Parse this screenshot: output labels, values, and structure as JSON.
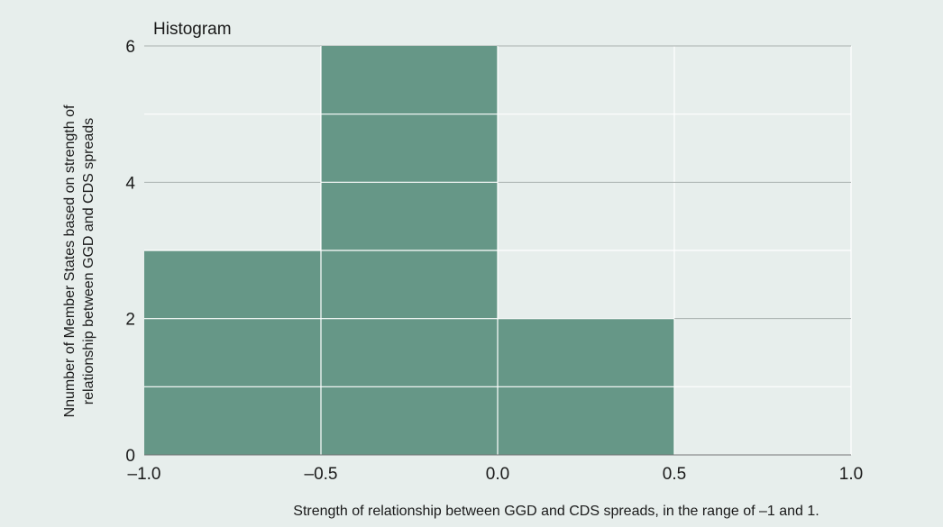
{
  "chart_data": {
    "type": "bar",
    "title": "Histogram",
    "xlabel": "Strength of relationship between GGD and CDS spreads, in the range of –1 and 1.",
    "ylabel_lines": [
      "Nnumber of Member States based on strength of",
      "relationship between GGD and CDS spreads"
    ],
    "bins": [
      {
        "from": -1.0,
        "to": -0.5,
        "count": 3
      },
      {
        "from": -0.5,
        "to": 0.0,
        "count": 6
      },
      {
        "from": 0.0,
        "to": 0.5,
        "count": 2
      },
      {
        "from": 0.5,
        "to": 1.0,
        "count": 0
      }
    ],
    "xlim": [
      -1.0,
      1.0
    ],
    "ylim": [
      0,
      6
    ],
    "x_ticks": [
      -1.0,
      -0.5,
      0.0,
      0.5,
      1.0
    ],
    "x_tick_labels": [
      "–1.0",
      "–0.5",
      "0.0",
      "0.5",
      "1.0"
    ],
    "y_ticks": [
      0,
      2,
      4,
      6
    ],
    "y_tick_labels": [
      "0",
      "2",
      "4",
      "6"
    ],
    "minor_y_gridlines": [
      1,
      3,
      5
    ],
    "grid": true,
    "colors": {
      "background": "#e7eeec",
      "bar": "#669787",
      "grid": "#ffffff",
      "major_grid": "#a9b0ae",
      "axis": "#777777"
    }
  }
}
